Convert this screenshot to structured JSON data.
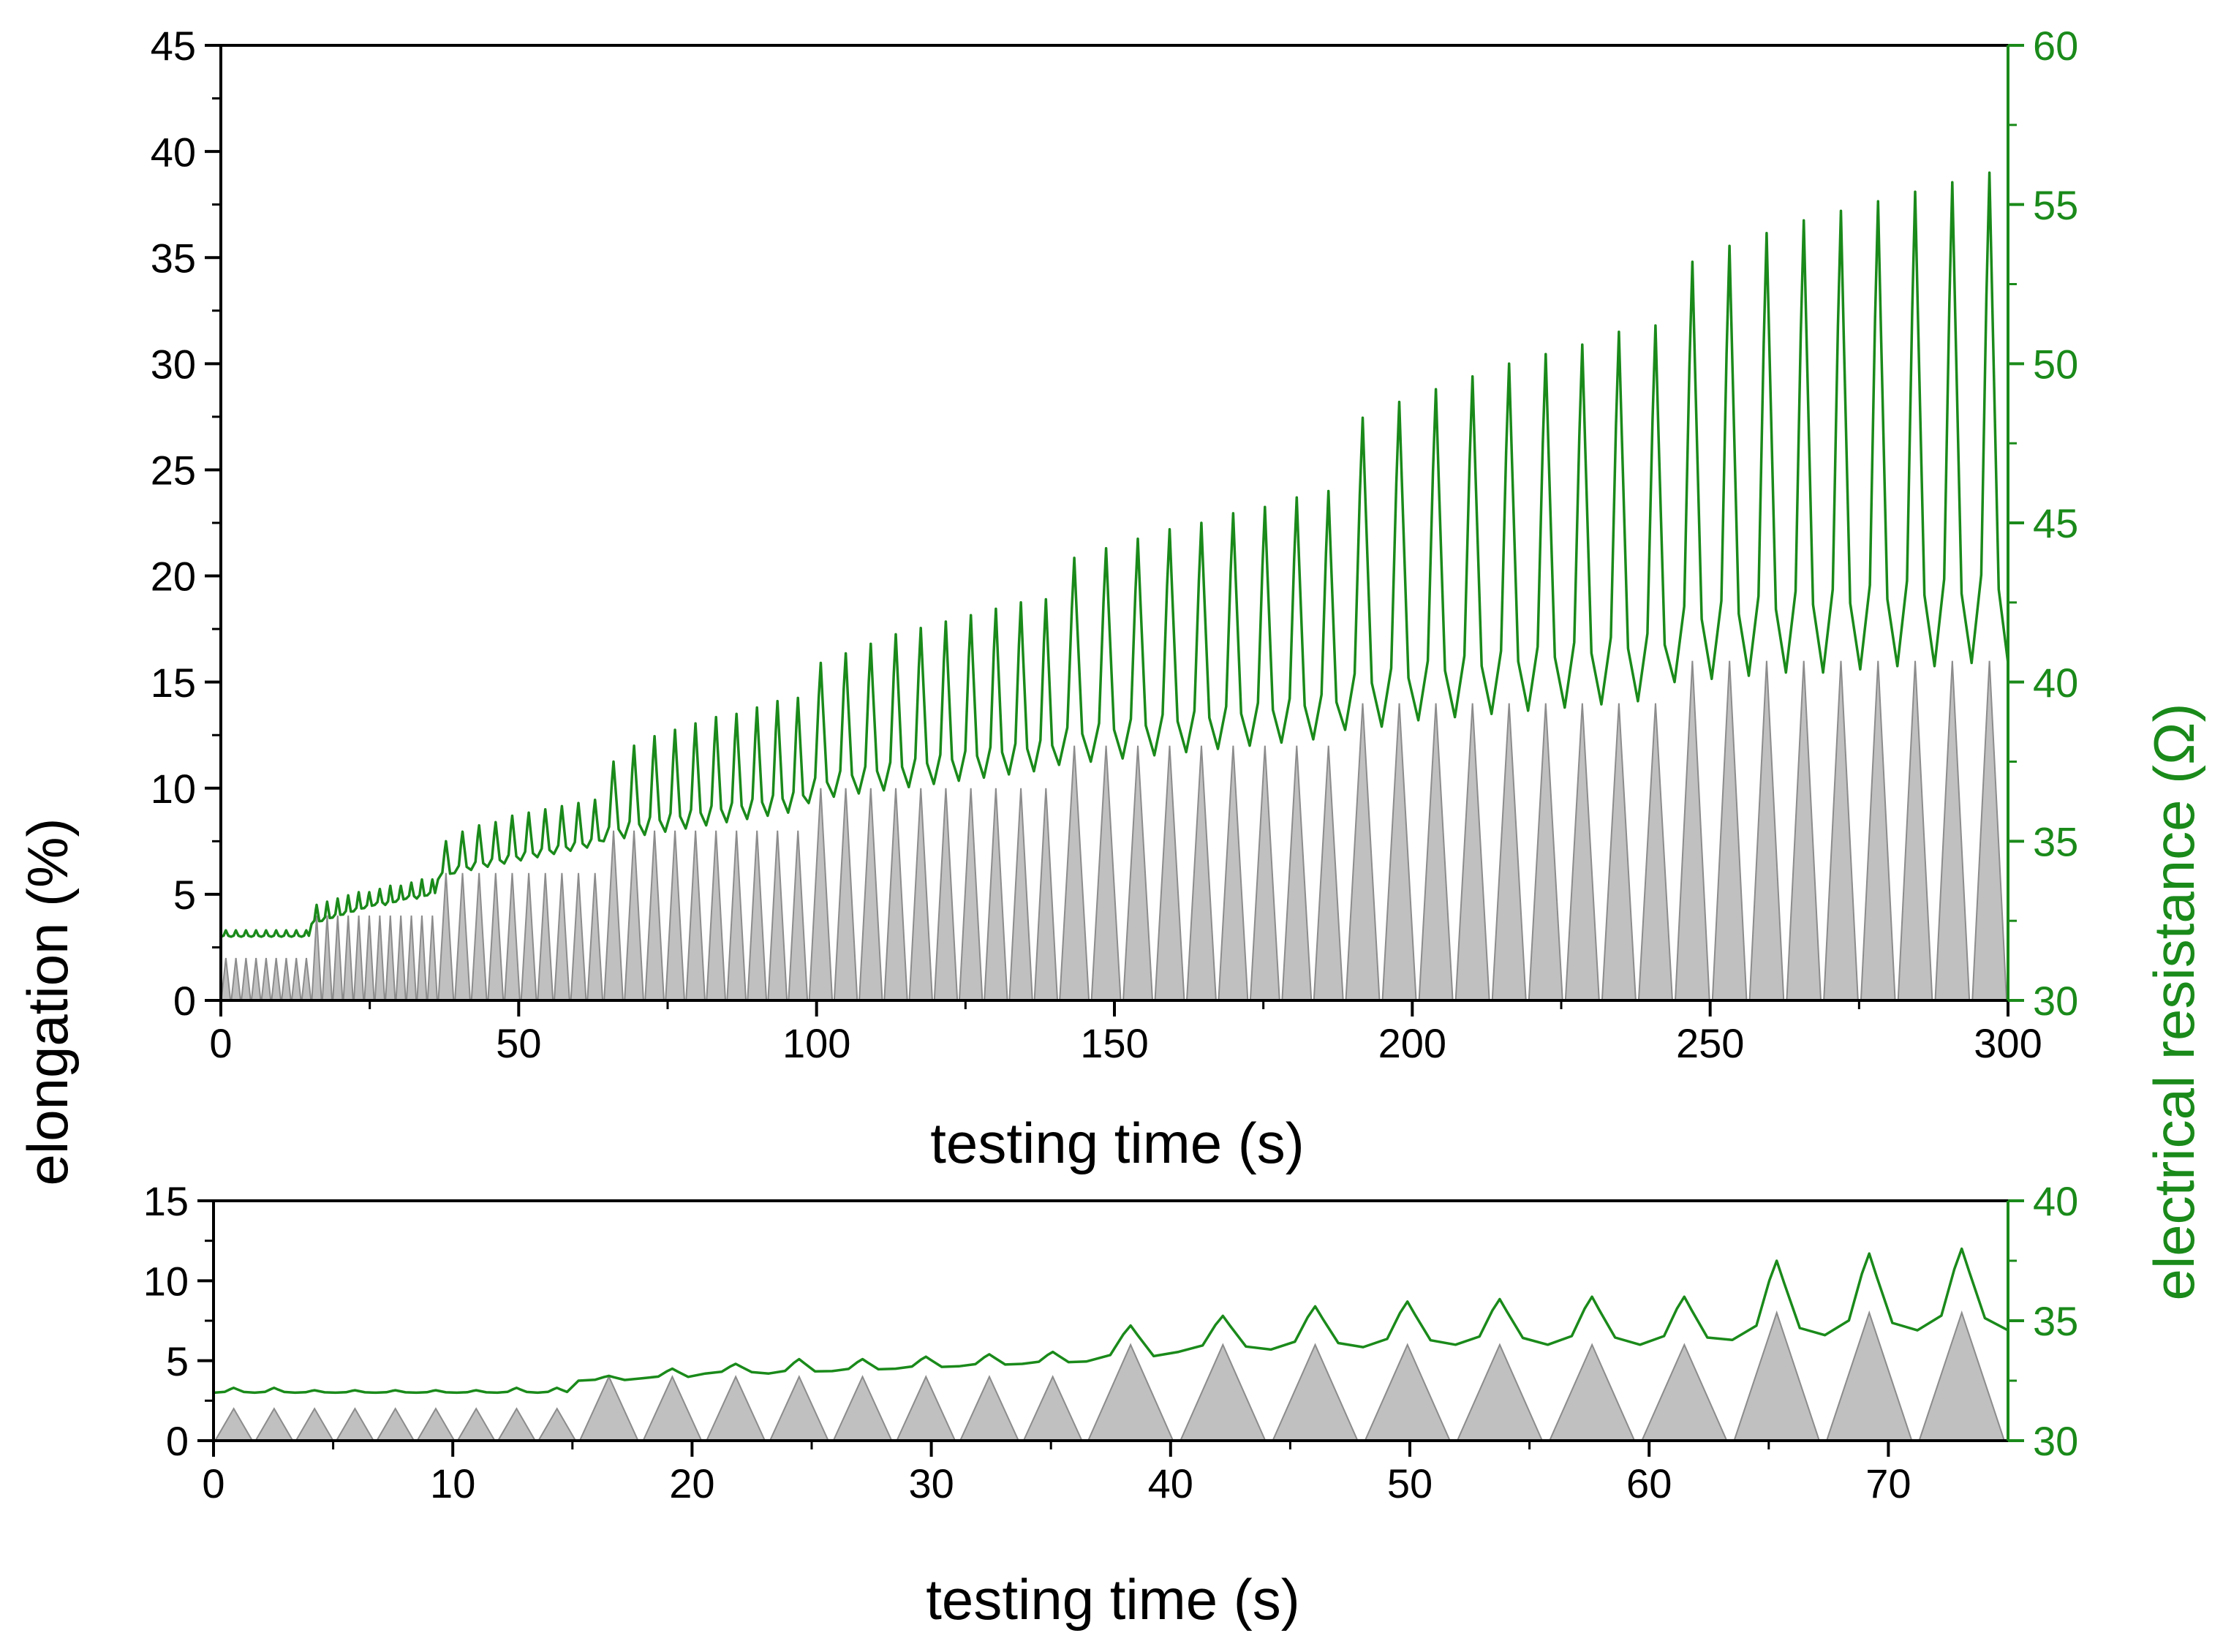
{
  "colors": {
    "axis": "#000000",
    "resistance": "#1a8a1a",
    "elongation_fill": "#c0c0c0",
    "elongation_stroke": "#8c8c8c"
  },
  "shared_ylabel": "elongation (%)",
  "shared_y2label": "electrical resistance (Ω)",
  "chart_data": [
    {
      "type": "area+line",
      "panel": "top",
      "xlabel": "testing time (s)",
      "ylabel": "elongation (%)",
      "y2label": "electrical resistance (Ω)",
      "xlim": [
        0,
        300
      ],
      "ylim": [
        0,
        45
      ],
      "y2lim": [
        30,
        60
      ],
      "xticks": [
        0,
        50,
        100,
        150,
        200,
        250,
        300
      ],
      "yticks": [
        0,
        5,
        10,
        15,
        20,
        25,
        30,
        35,
        40,
        45
      ],
      "y2ticks": [
        30,
        35,
        40,
        45,
        50,
        55,
        60
      ],
      "series": [
        {
          "name": "elongation",
          "axis": "left",
          "style": "filled triangles",
          "blocks": [
            {
              "start": 0,
              "end": 15.2,
              "cycles": 9,
              "amplitude": 2
            },
            {
              "start": 15.2,
              "end": 36.4,
              "cycles": 12,
              "amplitude": 4
            },
            {
              "start": 36.4,
              "end": 64.2,
              "cycles": 10,
              "amplitude": 6
            },
            {
              "start": 64.2,
              "end": 98.6,
              "cycles": 10,
              "amplitude": 8
            },
            {
              "start": 98.6,
              "end": 140.6,
              "cycles": 10,
              "amplitude": 10
            },
            {
              "start": 140.6,
              "end": 188.6,
              "cycles": 9,
              "amplitude": 12
            },
            {
              "start": 188.6,
              "end": 243.9,
              "cycles": 9,
              "amplitude": 14
            },
            {
              "start": 243.9,
              "end": 300,
              "cycles": 9,
              "amplitude": 16
            }
          ]
        },
        {
          "name": "electrical resistance",
          "axis": "right",
          "peaks": [
            32.2,
            32.2,
            32.2,
            32.2,
            32.2,
            32.2,
            32.2,
            32.2,
            32.2,
            33.0,
            33.1,
            33.2,
            33.3,
            33.4,
            33.4,
            33.5,
            33.6,
            33.6,
            33.7,
            33.8,
            33.8,
            35.0,
            35.3,
            35.5,
            35.6,
            35.8,
            35.9,
            36.0,
            36.1,
            36.2,
            36.3,
            37.5,
            38.0,
            38.3,
            38.5,
            38.7,
            38.9,
            39.0,
            39.2,
            39.4,
            39.5,
            40.6,
            40.9,
            41.2,
            41.5,
            41.7,
            41.9,
            42.1,
            42.3,
            42.5,
            42.6,
            43.9,
            44.2,
            44.5,
            44.8,
            45.0,
            45.3,
            45.5,
            45.8,
            46.0,
            48.3,
            48.8,
            49.2,
            49.6,
            50.0,
            50.3,
            50.6,
            51.0,
            51.2,
            53.2,
            53.7,
            54.1,
            54.5,
            54.8,
            55.1,
            55.4,
            55.7,
            56.0
          ],
          "troughs": [
            32.0,
            32.0,
            32.0,
            32.0,
            32.0,
            32.0,
            32.0,
            32.0,
            32.0,
            32.4,
            32.5,
            32.6,
            32.7,
            32.8,
            32.9,
            33.0,
            33.0,
            33.1,
            33.2,
            33.2,
            33.3,
            33.8,
            34.0,
            34.1,
            34.2,
            34.3,
            34.4,
            34.5,
            34.6,
            34.7,
            34.8,
            35.0,
            35.1,
            35.2,
            35.3,
            35.4,
            35.5,
            35.6,
            35.7,
            35.8,
            35.9,
            36.2,
            36.4,
            36.5,
            36.6,
            36.7,
            36.8,
            36.9,
            37.0,
            37.1,
            37.2,
            37.4,
            37.5,
            37.6,
            37.7,
            37.8,
            37.9,
            38.0,
            38.1,
            38.2,
            38.5,
            38.6,
            38.8,
            38.9,
            39.0,
            39.1,
            39.2,
            39.3,
            39.4,
            40.0,
            40.1,
            40.2,
            40.3,
            40.3,
            40.4,
            40.5,
            40.5,
            40.6
          ]
        }
      ]
    },
    {
      "type": "area+line",
      "panel": "bottom",
      "xlabel": "testing time (s)",
      "xlim": [
        0,
        75
      ],
      "ylim": [
        0,
        15
      ],
      "y2lim": [
        30,
        40
      ],
      "xticks": [
        0,
        10,
        20,
        30,
        40,
        50,
        60,
        70
      ],
      "yticks": [
        0,
        5,
        10,
        15
      ],
      "y2ticks": [
        30,
        35,
        40
      ],
      "series": [
        {
          "name": "elongation",
          "axis": "left",
          "style": "filled triangles",
          "blocks": [
            {
              "start": 0,
              "end": 15.2,
              "cycles": 9,
              "amplitude": 2
            },
            {
              "start": 15.2,
              "end": 36.4,
              "cycles": 8,
              "amplitude": 4
            },
            {
              "start": 36.4,
              "end": 63.4,
              "cycles": 7,
              "amplitude": 6
            },
            {
              "start": 63.4,
              "end": 75,
              "cycles": 3,
              "amplitude": 8
            }
          ]
        },
        {
          "name": "electrical resistance",
          "axis": "right",
          "peaks": [
            32.2,
            32.2,
            32.1,
            32.1,
            32.1,
            32.1,
            32.1,
            32.2,
            32.2,
            32.7,
            33.0,
            33.2,
            33.4,
            33.4,
            33.5,
            33.6,
            33.7,
            34.8,
            35.2,
            35.6,
            35.8,
            35.9,
            36.0,
            36.0,
            37.5,
            37.8,
            38.0
          ],
          "troughs": [
            32.0,
            32.0,
            32.0,
            32.0,
            32.0,
            32.0,
            32.0,
            32.0,
            32.0,
            32.5,
            32.6,
            32.8,
            32.8,
            32.9,
            33.0,
            33.1,
            33.2,
            33.3,
            33.7,
            33.8,
            33.9,
            34.0,
            34.0,
            34.0,
            34.2,
            34.4,
            34.6
          ]
        }
      ]
    }
  ]
}
